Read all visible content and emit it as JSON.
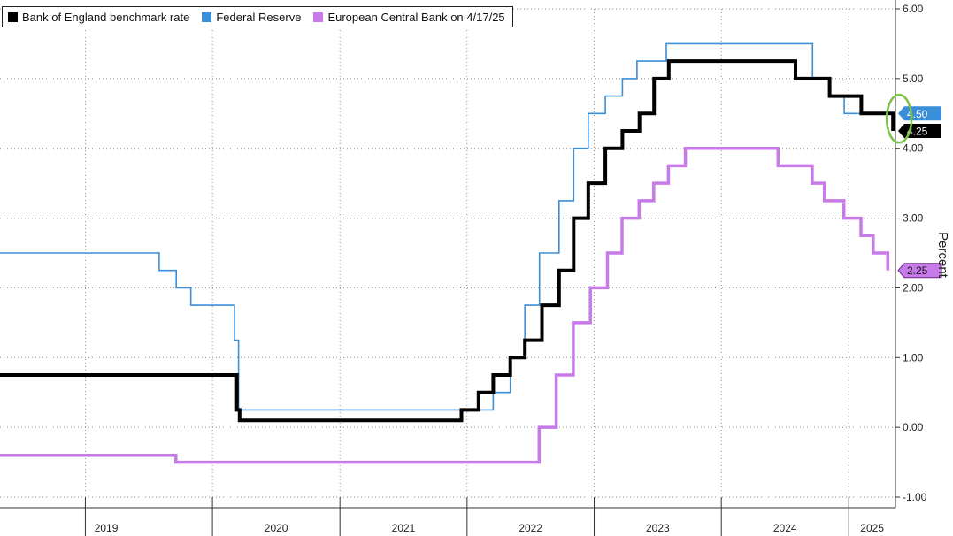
{
  "chart_data": {
    "type": "line",
    "ylabel": "Percent",
    "ylim": [
      -1.0,
      6.0
    ],
    "yticks": [
      -1.0,
      0.0,
      1.0,
      2.0,
      3.0,
      4.0,
      5.0,
      6.0
    ],
    "ytick_labels": [
      "-1.00",
      "0.00",
      "1.00",
      "2.00",
      "3.00",
      "4.00",
      "5.00",
      "6.00"
    ],
    "xlim": [
      "2018-05-01",
      "2025-05-15"
    ],
    "x_year_labels": [
      "2019",
      "2020",
      "2021",
      "2022",
      "2023",
      "2024",
      "2025"
    ],
    "grid": true,
    "legend_position": "top-left",
    "series": [
      {
        "name": "Bank of England benchmark rate",
        "color": "#000000",
        "step": true,
        "points": [
          [
            "2018-05-01",
            0.75
          ],
          [
            "2020-03-11",
            0.25
          ],
          [
            "2020-03-19",
            0.1
          ],
          [
            "2021-12-16",
            0.25
          ],
          [
            "2022-02-03",
            0.5
          ],
          [
            "2022-03-17",
            0.75
          ],
          [
            "2022-05-05",
            1.0
          ],
          [
            "2022-06-16",
            1.25
          ],
          [
            "2022-08-04",
            1.75
          ],
          [
            "2022-09-22",
            2.25
          ],
          [
            "2022-11-03",
            3.0
          ],
          [
            "2022-12-15",
            3.5
          ],
          [
            "2023-02-02",
            4.0
          ],
          [
            "2023-03-23",
            4.25
          ],
          [
            "2023-05-11",
            4.5
          ],
          [
            "2023-06-22",
            5.0
          ],
          [
            "2023-08-03",
            5.25
          ],
          [
            "2024-08-01",
            5.0
          ],
          [
            "2024-11-07",
            4.75
          ],
          [
            "2025-02-06",
            4.5
          ],
          [
            "2025-05-08",
            4.25
          ]
        ]
      },
      {
        "name": "Federal Reserve",
        "color": "#3a8fd8",
        "step": true,
        "points": [
          [
            "2018-05-01",
            2.5
          ],
          [
            "2019-08-01",
            2.25
          ],
          [
            "2019-09-19",
            2.0
          ],
          [
            "2019-10-31",
            1.75
          ],
          [
            "2020-03-04",
            1.25
          ],
          [
            "2020-03-16",
            0.25
          ],
          [
            "2022-03-17",
            0.5
          ],
          [
            "2022-05-05",
            1.0
          ],
          [
            "2022-06-16",
            1.75
          ],
          [
            "2022-07-28",
            2.5
          ],
          [
            "2022-09-22",
            3.25
          ],
          [
            "2022-11-03",
            4.0
          ],
          [
            "2022-12-15",
            4.5
          ],
          [
            "2023-02-02",
            4.75
          ],
          [
            "2023-03-23",
            5.0
          ],
          [
            "2023-05-04",
            5.25
          ],
          [
            "2023-07-27",
            5.5
          ],
          [
            "2024-09-19",
            5.0
          ],
          [
            "2024-11-08",
            4.75
          ],
          [
            "2024-12-19",
            4.5
          ],
          [
            "2025-04-17",
            4.5
          ]
        ]
      },
      {
        "name": "European Central Bank on 4/17/25",
        "color": "#c77ae8",
        "step": true,
        "points": [
          [
            "2018-05-01",
            -0.4
          ],
          [
            "2019-09-18",
            -0.5
          ],
          [
            "2022-07-27",
            0.0
          ],
          [
            "2022-09-14",
            0.75
          ],
          [
            "2022-11-02",
            1.5
          ],
          [
            "2022-12-21",
            2.0
          ],
          [
            "2023-02-08",
            2.5
          ],
          [
            "2023-03-22",
            3.0
          ],
          [
            "2023-05-10",
            3.25
          ],
          [
            "2023-06-21",
            3.5
          ],
          [
            "2023-08-02",
            3.75
          ],
          [
            "2023-09-20",
            4.0
          ],
          [
            "2024-06-12",
            3.75
          ],
          [
            "2024-09-18",
            3.5
          ],
          [
            "2024-10-23",
            3.25
          ],
          [
            "2024-12-18",
            3.0
          ],
          [
            "2025-02-05",
            2.75
          ],
          [
            "2025-03-12",
            2.5
          ],
          [
            "2025-04-23",
            2.25
          ]
        ]
      }
    ],
    "last_value_labels": [
      {
        "value": 4.5,
        "text": "4.50",
        "color": "#3a8fd8"
      },
      {
        "value": 4.25,
        "text": "4.25",
        "color": "#000000"
      },
      {
        "value": 2.25,
        "text": "2.25",
        "color": "#c77ae8"
      }
    ],
    "annotation": {
      "type": "ellipse",
      "color": "#7cc242",
      "around_series": "Bank of England benchmark rate",
      "around_date": "2025-04-25",
      "around_value": 4.4
    }
  },
  "legend": {
    "items": [
      {
        "label": "Bank of England benchmark rate",
        "color": "#000000"
      },
      {
        "label": "Federal Reserve",
        "color": "#3a8fd8"
      },
      {
        "label": "European Central Bank on 4/17/25",
        "color": "#c77ae8"
      }
    ]
  }
}
